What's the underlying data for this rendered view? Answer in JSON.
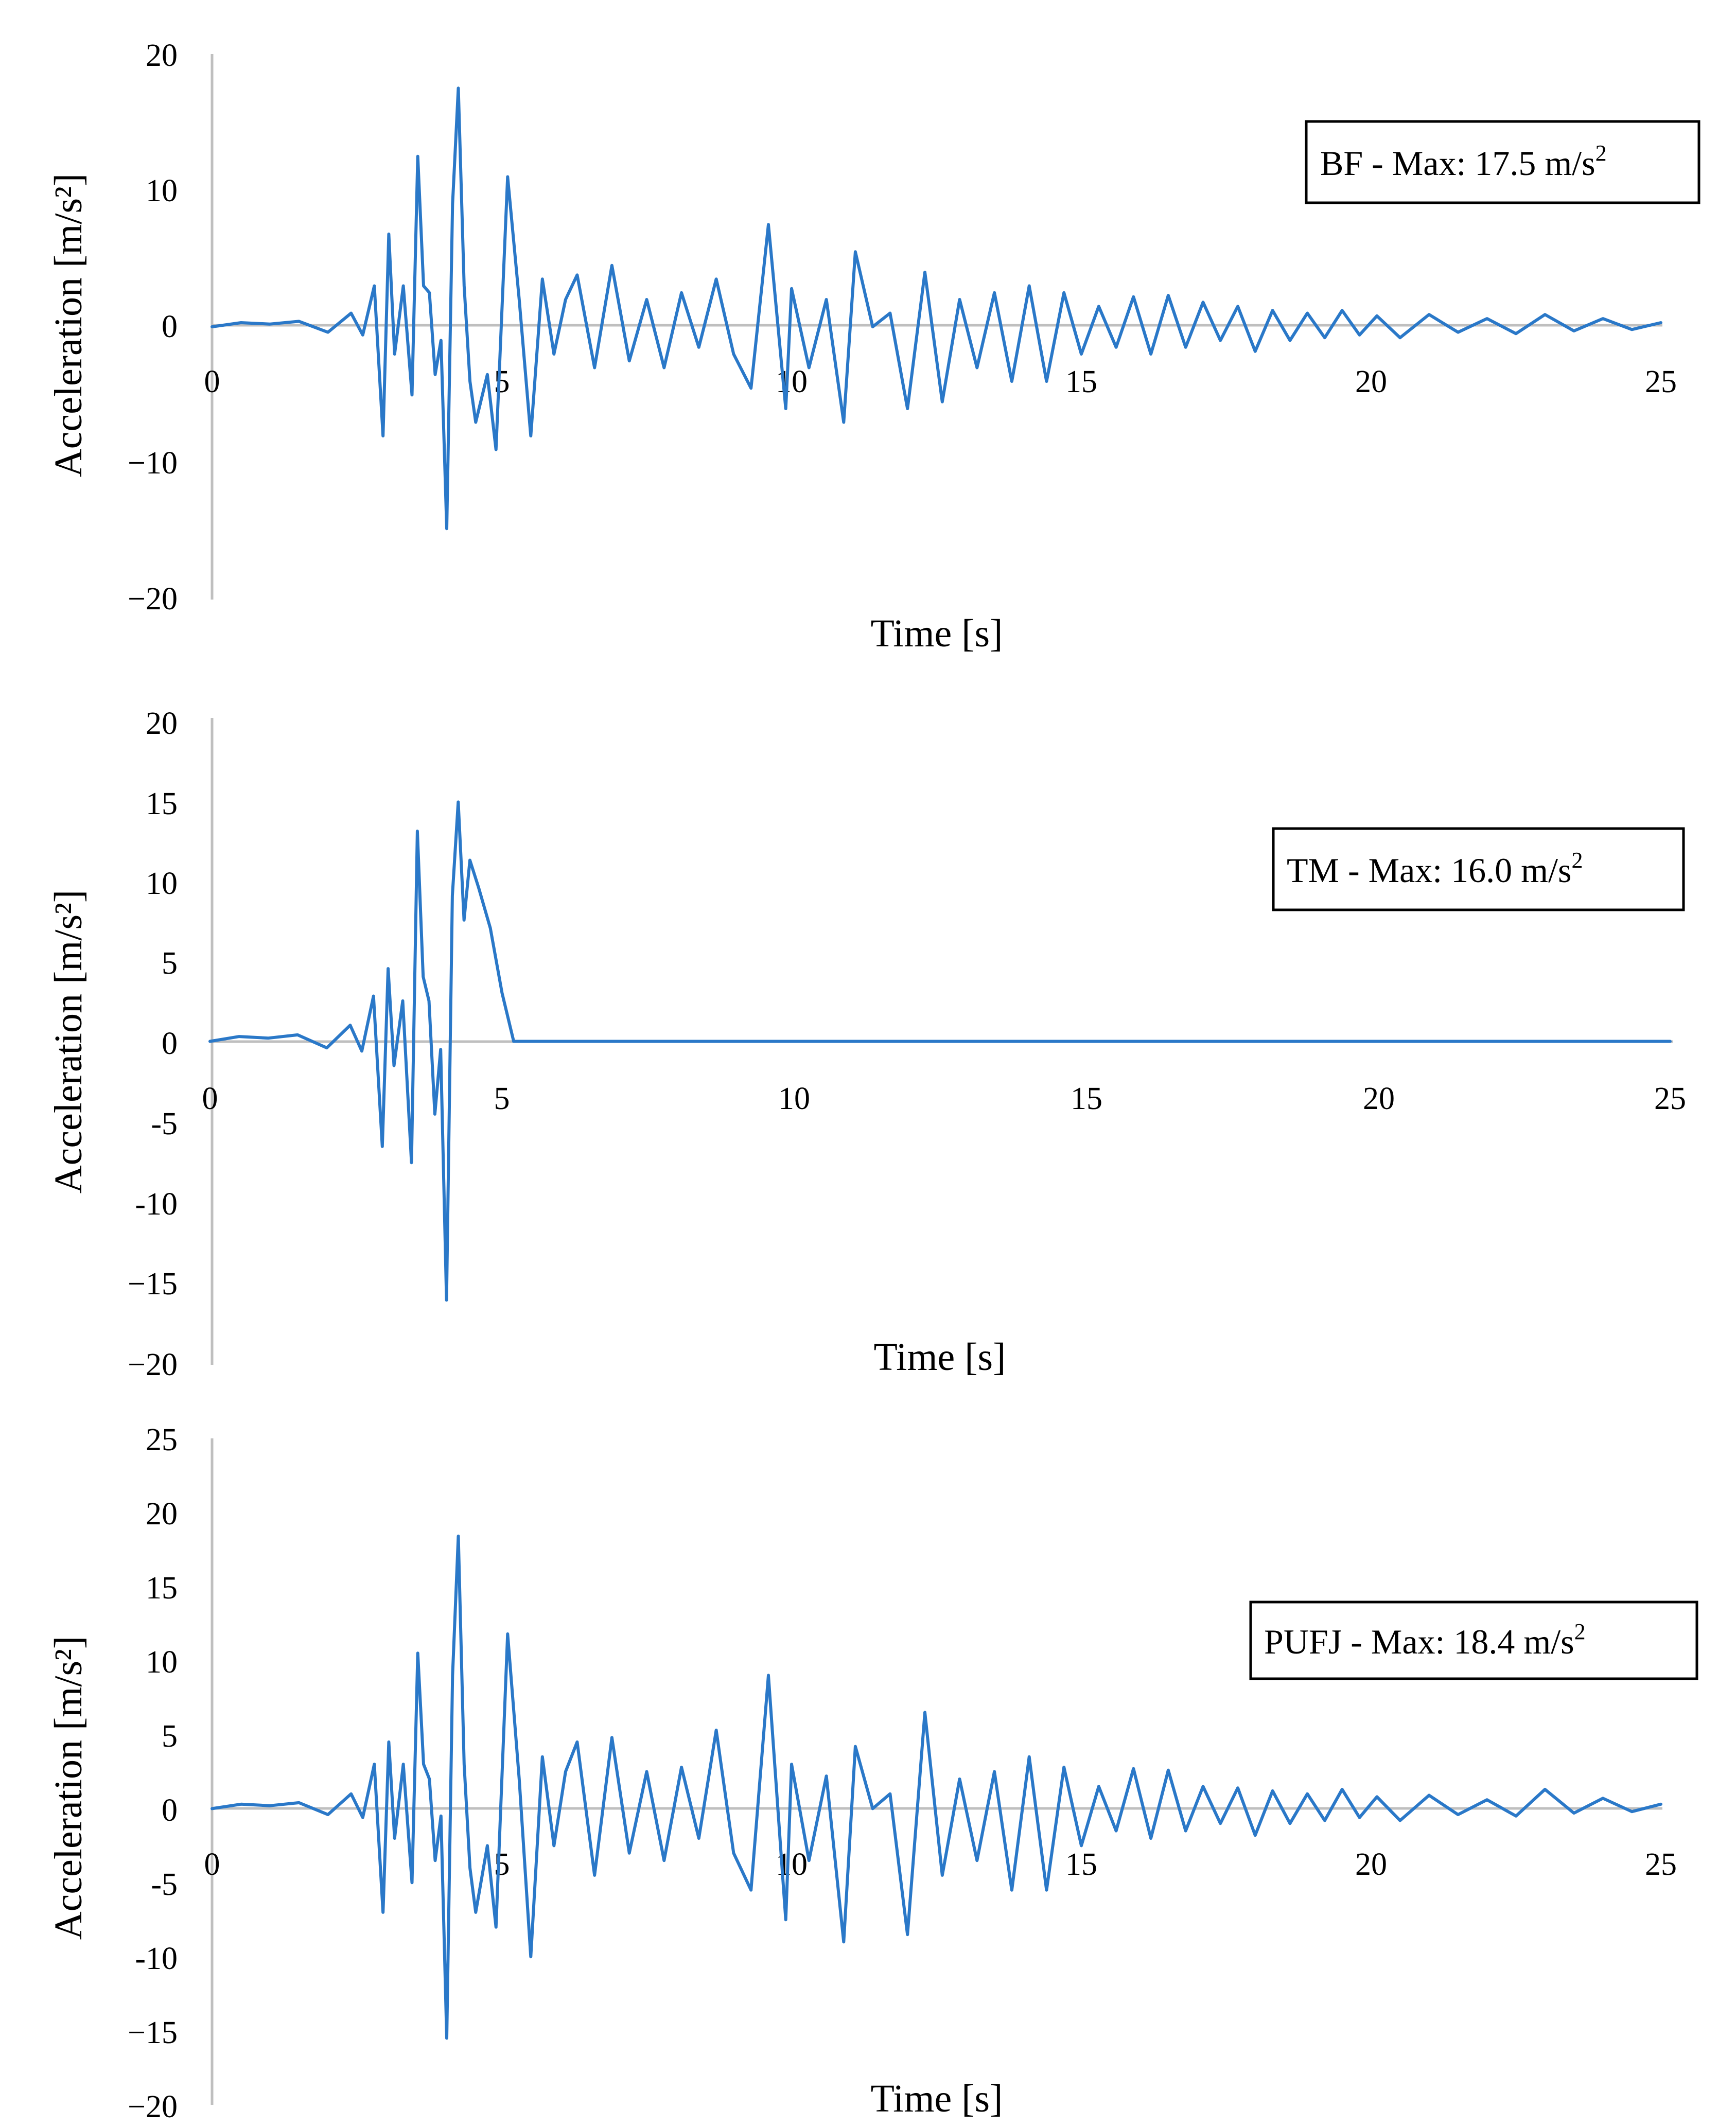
{
  "colors": {
    "series": "#2a78c8",
    "axis": "#bfbfbf",
    "text": "#000000"
  },
  "chart_data": [
    {
      "type": "line",
      "title": "",
      "xlabel": "Time [s]",
      "ylabel": "Acceleration [m/s²]",
      "xlim": [
        0,
        25
      ],
      "ylim": [
        -20,
        20
      ],
      "xticks": [
        "0",
        "5",
        "10",
        "15",
        "20",
        "25"
      ],
      "yticks": [
        "20",
        "10",
        "0",
        "−10",
        "−20"
      ],
      "grid": false,
      "annotation": {
        "text": "BF - Max: 17.5 m/s",
        "sup": "2"
      },
      "series": [
        {
          "name": "BF",
          "x": [
            0,
            0.5,
            1.0,
            1.5,
            2.0,
            2.4,
            2.6,
            2.8,
            2.95,
            3.05,
            3.15,
            3.3,
            3.45,
            3.55,
            3.65,
            3.75,
            3.85,
            3.95,
            4.05,
            4.15,
            4.25,
            4.35,
            4.45,
            4.55,
            4.75,
            4.9,
            5.1,
            5.3,
            5.5,
            5.7,
            5.9,
            6.1,
            6.3,
            6.6,
            6.9,
            7.2,
            7.5,
            7.8,
            8.1,
            8.4,
            8.7,
            9.0,
            9.3,
            9.6,
            9.9,
            10.0,
            10.3,
            10.6,
            10.9,
            11.1,
            11.4,
            11.7,
            12.0,
            12.3,
            12.6,
            12.9,
            13.2,
            13.5,
            13.8,
            14.1,
            14.4,
            14.7,
            15.0,
            15.3,
            15.6,
            15.9,
            16.2,
            16.5,
            16.8,
            17.1,
            17.4,
            17.7,
            18.0,
            18.3,
            18.6,
            18.9,
            19.2,
            19.5,
            19.8,
            20.1,
            20.5,
            21.0,
            21.5,
            22.0,
            22.5,
            23.0,
            23.5,
            24.0,
            24.5,
            25.0
          ],
          "y": [
            0,
            0.3,
            0.2,
            0.4,
            -0.4,
            1.0,
            -0.6,
            3.0,
            -8.0,
            6.8,
            -2.0,
            3.0,
            -5.0,
            12.5,
            3.0,
            2.5,
            -3.5,
            -1.0,
            -14.8,
            9.0,
            17.5,
            3.0,
            -4.0,
            -7.0,
            -3.5,
            -9.0,
            11.0,
            2.0,
            -8.0,
            3.5,
            -2.0,
            2.0,
            3.8,
            -3.0,
            4.5,
            -2.5,
            2.0,
            -3.0,
            2.5,
            -1.5,
            3.5,
            -2.0,
            -4.5,
            7.5,
            -6.0,
            2.8,
            -3.0,
            2.0,
            -7.0,
            5.5,
            0.0,
            1.0,
            -6.0,
            4.0,
            -5.5,
            2.0,
            -3.0,
            2.5,
            -4.0,
            3.0,
            -4.0,
            2.5,
            -2.0,
            1.5,
            -1.5,
            2.2,
            -2.0,
            2.3,
            -1.5,
            1.8,
            -1.0,
            1.5,
            -1.8,
            1.2,
            -1.0,
            1.0,
            -0.8,
            1.2,
            -0.6,
            0.8,
            -0.8,
            0.9,
            -0.4,
            0.6,
            -0.5,
            0.9,
            -0.3,
            0.6,
            -0.2,
            0.3
          ]
        }
      ]
    },
    {
      "type": "line",
      "title": "",
      "xlabel": "Time [s]",
      "ylabel": "Acceleration [m/s²]",
      "xlim": [
        0,
        25
      ],
      "ylim": [
        -20,
        20
      ],
      "xticks": [
        "0",
        "5",
        "10",
        "15",
        "20",
        "25"
      ],
      "yticks": [
        "20",
        "15",
        "10",
        "5",
        "0",
        "-5",
        "-10",
        "−15",
        "−20"
      ],
      "grid": false,
      "annotation": {
        "text": "TM - Max: 16.0 m/s",
        "sup": "2"
      },
      "series": [
        {
          "name": "TM",
          "x": [
            0,
            0.5,
            1.0,
            1.5,
            2.0,
            2.4,
            2.6,
            2.8,
            2.95,
            3.05,
            3.15,
            3.3,
            3.45,
            3.55,
            3.65,
            3.75,
            3.85,
            3.95,
            4.05,
            4.15,
            4.25,
            4.35,
            4.45,
            4.6,
            4.8,
            5.0,
            5.2,
            25.0
          ],
          "y": [
            0,
            0.3,
            0.2,
            0.4,
            -0.4,
            1.0,
            -0.6,
            2.8,
            -6.5,
            4.5,
            -1.5,
            2.5,
            -7.5,
            13.0,
            4.0,
            2.5,
            -4.5,
            -0.5,
            -16.0,
            9.0,
            14.8,
            7.5,
            11.2,
            9.5,
            7.0,
            3.0,
            0.0,
            0.0
          ]
        }
      ]
    },
    {
      "type": "line",
      "title": "",
      "xlabel": "Time [s]",
      "ylabel": "Acceleration [m/s²]",
      "xlim": [
        0,
        25
      ],
      "ylim": [
        -20,
        25
      ],
      "xticks": [
        "0",
        "5",
        "10",
        "15",
        "20",
        "25"
      ],
      "yticks": [
        "25",
        "20",
        "15",
        "10",
        "5",
        "0",
        "-5",
        "-10",
        "−15",
        "−20"
      ],
      "grid": false,
      "annotation": {
        "text": "PUFJ - Max: 18.4 m/s",
        "sup": "2"
      },
      "series": [
        {
          "name": "PUFJ",
          "x": [
            0,
            0.5,
            1.0,
            1.5,
            2.0,
            2.4,
            2.6,
            2.8,
            2.95,
            3.05,
            3.15,
            3.3,
            3.45,
            3.55,
            3.65,
            3.75,
            3.85,
            3.95,
            4.05,
            4.15,
            4.25,
            4.35,
            4.45,
            4.55,
            4.75,
            4.9,
            5.1,
            5.3,
            5.5,
            5.7,
            5.9,
            6.1,
            6.3,
            6.6,
            6.9,
            7.2,
            7.5,
            7.8,
            8.1,
            8.4,
            8.7,
            9.0,
            9.3,
            9.6,
            9.9,
            10.0,
            10.3,
            10.6,
            10.9,
            11.1,
            11.4,
            11.7,
            12.0,
            12.3,
            12.6,
            12.9,
            13.2,
            13.5,
            13.8,
            14.1,
            14.4,
            14.7,
            15.0,
            15.3,
            15.6,
            15.9,
            16.2,
            16.5,
            16.8,
            17.1,
            17.4,
            17.7,
            18.0,
            18.3,
            18.6,
            18.9,
            19.2,
            19.5,
            19.8,
            20.1,
            20.5,
            21.0,
            21.5,
            22.0,
            22.5,
            23.0,
            23.5,
            24.0,
            24.5,
            25.0
          ],
          "y": [
            0,
            0.3,
            0.2,
            0.4,
            -0.4,
            1.0,
            -0.6,
            3.0,
            -7.0,
            4.5,
            -2.0,
            3.0,
            -5.0,
            10.5,
            3.0,
            2.0,
            -3.5,
            -0.5,
            -15.5,
            9.0,
            18.4,
            3.0,
            -4.0,
            -7.0,
            -2.5,
            -8.0,
            11.8,
            2.0,
            -10.0,
            3.5,
            -2.5,
            2.5,
            4.5,
            -4.5,
            4.8,
            -3.0,
            2.5,
            -3.5,
            2.8,
            -2.0,
            5.3,
            -3.0,
            -5.5,
            9.0,
            -7.5,
            3.0,
            -3.5,
            2.2,
            -9.0,
            4.2,
            0.0,
            1.0,
            -8.5,
            6.5,
            -4.5,
            2.0,
            -3.5,
            2.5,
            -5.5,
            3.5,
            -5.5,
            2.8,
            -2.5,
            1.5,
            -1.5,
            2.7,
            -2.0,
            2.6,
            -1.5,
            1.5,
            -1.0,
            1.4,
            -1.8,
            1.2,
            -1.0,
            1.0,
            -0.8,
            1.3,
            -0.6,
            0.8,
            -0.8,
            0.9,
            -0.4,
            0.6,
            -0.5,
            1.3,
            -0.3,
            0.7,
            -0.2,
            0.3
          ]
        }
      ]
    }
  ]
}
